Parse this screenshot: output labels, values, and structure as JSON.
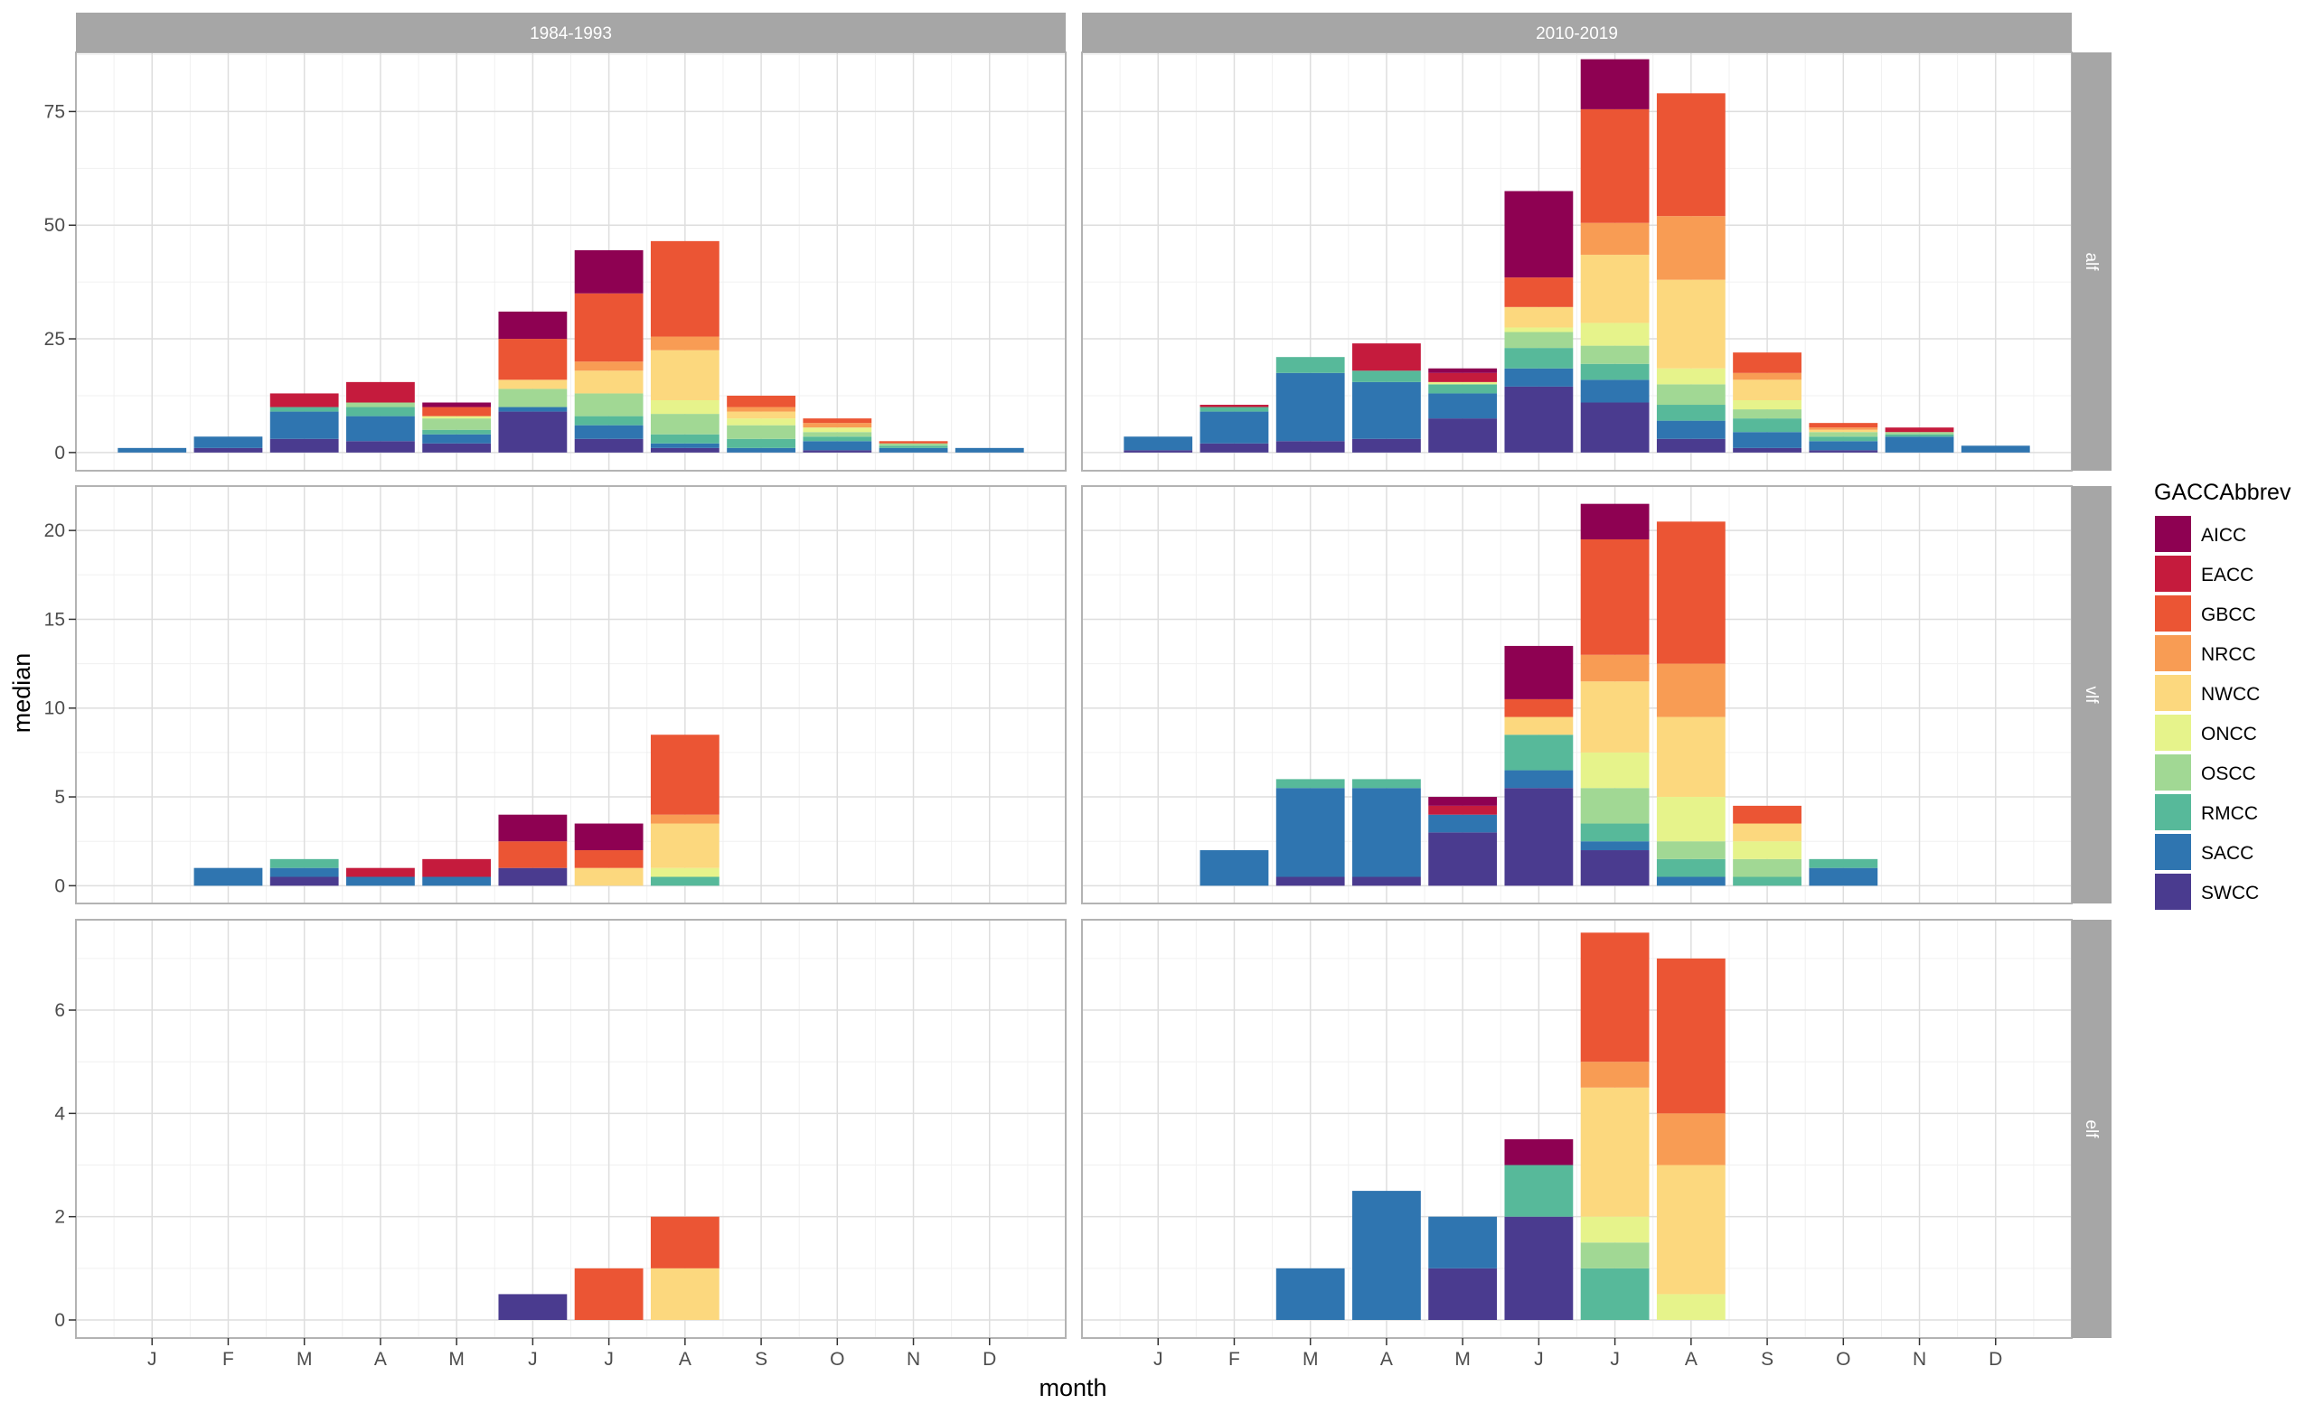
{
  "chart_data": {
    "type": "bar",
    "stacked": true,
    "xlabel": "month",
    "ylabel": "median",
    "months": [
      "J",
      "F",
      "M",
      "A",
      "M",
      "J",
      "J",
      "A",
      "S",
      "O",
      "N",
      "D"
    ],
    "column_facets": [
      "1984-1993",
      "2010-2019"
    ],
    "row_facets": [
      "alf",
      "vlf",
      "elf"
    ],
    "grid": true,
    "legend": {
      "title": "GACCAbbrev",
      "position": "right",
      "stack_order_bottom_to_top": [
        "SWCC",
        "SACC",
        "RMCC",
        "OSCC",
        "ONCC",
        "NWCC",
        "NRCC",
        "GBCC",
        "EACC",
        "AICC"
      ],
      "items": [
        {
          "name": "AICC",
          "color": "#8E0152"
        },
        {
          "name": "EACC",
          "color": "#C51B3D"
        },
        {
          "name": "GBCC",
          "color": "#EB5534"
        },
        {
          "name": "NRCC",
          "color": "#F89C54"
        },
        {
          "name": "NWCC",
          "color": "#FCD87E"
        },
        {
          "name": "ONCC",
          "color": "#E6F38B"
        },
        {
          "name": "OSCC",
          "color": "#A1D894"
        },
        {
          "name": "RMCC",
          "color": "#57B99A"
        },
        {
          "name": "SACC",
          "color": "#2F75B0"
        },
        {
          "name": "SWCC",
          "color": "#4A3B8F"
        }
      ]
    },
    "rows": [
      {
        "name": "alf",
        "ylim": [
          -4,
          88
        ],
        "yticks": [
          0,
          25,
          50,
          75
        ],
        "panels": [
          {
            "facet": "1984-1993",
            "stacks": [
              {
                "SACC": 1
              },
              {
                "SWCC": 1,
                "SACC": 2.5
              },
              {
                "SWCC": 3,
                "SACC": 6,
                "RMCC": 1,
                "EACC": 3
              },
              {
                "SWCC": 2.5,
                "SACC": 5.5,
                "RMCC": 2,
                "OSCC": 1,
                "EACC": 4.5
              },
              {
                "SWCC": 2,
                "SACC": 2,
                "RMCC": 1,
                "OSCC": 2.5,
                "ONCC": 0.5,
                "GBCC": 2,
                "AICC": 1
              },
              {
                "SWCC": 9,
                "SACC": 1,
                "OSCC": 4,
                "NWCC": 2,
                "GBCC": 9,
                "AICC": 6
              },
              {
                "SWCC": 3,
                "SACC": 3,
                "RMCC": 2,
                "OSCC": 5,
                "NWCC": 5,
                "NRCC": 2,
                "GBCC": 15,
                "AICC": 9.5
              },
              {
                "SWCC": 1,
                "SACC": 1,
                "RMCC": 2,
                "OSCC": 4.5,
                "ONCC": 3,
                "NWCC": 11,
                "NRCC": 3,
                "GBCC": 21
              },
              {
                "SACC": 1,
                "RMCC": 2,
                "OSCC": 3,
                "ONCC": 1.5,
                "NWCC": 1.5,
                "NRCC": 1,
                "GBCC": 2.5
              },
              {
                "SWCC": 0.5,
                "SACC": 2,
                "RMCC": 1,
                "OSCC": 1,
                "ONCC": 1,
                "NRCC": 1,
                "GBCC": 1
              },
              {
                "SACC": 1,
                "RMCC": 0.5,
                "OSCC": 0.5,
                "GBCC": 0.5
              },
              {
                "SACC": 1
              }
            ]
          },
          {
            "facet": "2010-2019",
            "stacks": [
              {
                "SWCC": 0.5,
                "SACC": 3
              },
              {
                "SWCC": 2,
                "SACC": 7,
                "RMCC": 1,
                "EACC": 0.5
              },
              {
                "SWCC": 2.5,
                "SACC": 15,
                "RMCC": 3.5
              },
              {
                "SWCC": 3,
                "SACC": 12.5,
                "RMCC": 2.5,
                "EACC": 6
              },
              {
                "SWCC": 7.5,
                "SACC": 5.5,
                "RMCC": 2,
                "ONCC": 0.5,
                "EACC": 2,
                "AICC": 1
              },
              {
                "SWCC": 14.5,
                "SACC": 4,
                "RMCC": 4.5,
                "OSCC": 3.5,
                "ONCC": 1,
                "NWCC": 4.5,
                "GBCC": 6.5,
                "AICC": 19
              },
              {
                "SWCC": 11,
                "SACC": 5,
                "RMCC": 3.5,
                "OSCC": 4,
                "ONCC": 5,
                "NWCC": 15,
                "NRCC": 7,
                "GBCC": 25,
                "AICC": 11
              },
              {
                "SWCC": 3,
                "SACC": 4,
                "RMCC": 3.5,
                "OSCC": 4.5,
                "ONCC": 3.5,
                "NWCC": 19.5,
                "NRCC": 14,
                "GBCC": 27
              },
              {
                "SWCC": 1,
                "SACC": 3.5,
                "RMCC": 3,
                "OSCC": 2,
                "ONCC": 2,
                "NWCC": 4.5,
                "NRCC": 1.5,
                "GBCC": 4.5
              },
              {
                "SWCC": 0.5,
                "SACC": 2,
                "RMCC": 1,
                "OSCC": 1,
                "NWCC": 0.5,
                "NRCC": 0.5,
                "GBCC": 1
              },
              {
                "SACC": 3.5,
                "RMCC": 0.5,
                "OSCC": 0.5,
                "EACC": 1
              },
              {
                "SACC": 1.5
              }
            ]
          }
        ]
      },
      {
        "name": "vlf",
        "ylim": [
          -1,
          22.5
        ],
        "yticks": [
          0,
          5,
          10,
          15,
          20
        ],
        "panels": [
          {
            "facet": "1984-1993",
            "stacks": [
              {},
              {
                "SACC": 1
              },
              {
                "SWCC": 0.5,
                "SACC": 0.5,
                "RMCC": 0.5
              },
              {
                "SACC": 0.5,
                "EACC": 0.5
              },
              {
                "SACC": 0.5,
                "EACC": 1
              },
              {
                "SWCC": 1,
                "GBCC": 1.5,
                "AICC": 1.5
              },
              {
                "NWCC": 1,
                "GBCC": 1,
                "AICC": 1.5
              },
              {
                "RMCC": 0.5,
                "ONCC": 0.5,
                "NWCC": 2.5,
                "NRCC": 0.5,
                "GBCC": 4.5
              },
              {},
              {},
              {},
              {}
            ]
          },
          {
            "facet": "2010-2019",
            "stacks": [
              {},
              {
                "SACC": 2
              },
              {
                "SWCC": 0.5,
                "SACC": 5,
                "RMCC": 0.5
              },
              {
                "SWCC": 0.5,
                "SACC": 5,
                "RMCC": 0.5
              },
              {
                "SWCC": 3,
                "SACC": 1,
                "EACC": 0.5,
                "AICC": 0.5
              },
              {
                "SWCC": 5.5,
                "SACC": 1,
                "RMCC": 2,
                "NWCC": 1,
                "GBCC": 1,
                "AICC": 3
              },
              {
                "SWCC": 2,
                "SACC": 0.5,
                "RMCC": 1,
                "OSCC": 2,
                "ONCC": 2,
                "NWCC": 4,
                "NRCC": 1.5,
                "GBCC": 6.5,
                "AICC": 2
              },
              {
                "SACC": 0.5,
                "RMCC": 1,
                "OSCC": 1,
                "ONCC": 2.5,
                "NWCC": 4.5,
                "NRCC": 3,
                "GBCC": 8
              },
              {
                "RMCC": 0.5,
                "OSCC": 1,
                "ONCC": 1,
                "NWCC": 1,
                "GBCC": 1
              },
              {
                "SACC": 1,
                "RMCC": 0.5
              },
              {},
              {}
            ]
          }
        ]
      },
      {
        "name": "elf",
        "ylim": [
          -0.35,
          7.75
        ],
        "yticks": [
          0,
          2,
          4,
          6
        ],
        "panels": [
          {
            "facet": "1984-1993",
            "stacks": [
              {},
              {},
              {},
              {},
              {},
              {
                "SWCC": 0.5
              },
              {
                "GBCC": 1
              },
              {
                "NWCC": 1,
                "GBCC": 1
              },
              {},
              {},
              {},
              {}
            ]
          },
          {
            "facet": "2010-2019",
            "stacks": [
              {},
              {},
              {
                "SACC": 1
              },
              {
                "SACC": 2.5
              },
              {
                "SWCC": 1,
                "SACC": 1
              },
              {
                "SWCC": 2,
                "RMCC": 1,
                "AICC": 0.5
              },
              {
                "RMCC": 1,
                "OSCC": 0.5,
                "ONCC": 0.5,
                "NWCC": 2.5,
                "NRCC": 0.5,
                "GBCC": 2.5
              },
              {
                "ONCC": 0.5,
                "NWCC": 2.5,
                "NRCC": 1,
                "GBCC": 3
              },
              {},
              {},
              {},
              {}
            ]
          }
        ]
      }
    ]
  }
}
